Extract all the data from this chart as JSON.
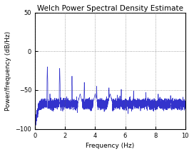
{
  "title": "Welch Power Spectral Density Estimate",
  "xlabel": "Frequency (Hz)",
  "ylabel": "Power/frequency (dB/Hz)",
  "xlim": [
    0,
    10
  ],
  "ylim": [
    -100,
    50
  ],
  "xticks": [
    0,
    2,
    4,
    6,
    8,
    10
  ],
  "yticks": [
    -100,
    -50,
    0,
    50
  ],
  "line_color": "#3333cc",
  "background_color": "#ffffff",
  "grid_color": "#555555",
  "noise_floor": -68,
  "noise_std": 3.5,
  "fundamental": 0.82,
  "peak_amps": [
    -20,
    -22,
    -32,
    -40,
    -45,
    -47,
    -49,
    -51,
    -53,
    -55,
    -57,
    -59
  ],
  "seed": 12,
  "title_fontsize": 7.5,
  "label_fontsize": 6.5,
  "tick_fontsize": 6,
  "linewidth": 0.5
}
